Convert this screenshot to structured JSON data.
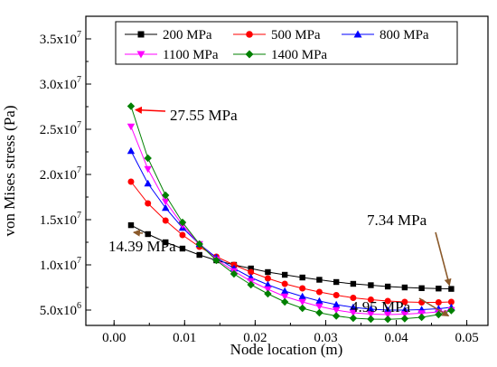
{
  "chart_data": {
    "type": "line",
    "title": "",
    "xlabel": "Node location (m)",
    "ylabel": "von Mises stress (Pa)",
    "xlim": [
      -0.004,
      0.053
    ],
    "ylim": [
      3300000,
      37500000
    ],
    "grid": false,
    "legend_placement": "top",
    "x_ticks": [
      {
        "value": 0.0,
        "label": "0.00"
      },
      {
        "value": 0.01,
        "label": "0.01"
      },
      {
        "value": 0.02,
        "label": "0.02"
      },
      {
        "value": 0.03,
        "label": "0.03"
      },
      {
        "value": 0.04,
        "label": "0.04"
      },
      {
        "value": 0.05,
        "label": "0.05"
      }
    ],
    "y_ticks": [
      {
        "value": 5000000,
        "mant": "5.0x10",
        "exp": "6"
      },
      {
        "value": 10000000,
        "mant": "1.0x10",
        "exp": "7"
      },
      {
        "value": 15000000,
        "mant": "1.5x10",
        "exp": "7"
      },
      {
        "value": 20000000,
        "mant": "2.0x10",
        "exp": "7"
      },
      {
        "value": 25000000,
        "mant": "2.5x10",
        "exp": "7"
      },
      {
        "value": 30000000,
        "mant": "3.0x10",
        "exp": "7"
      },
      {
        "value": 35000000,
        "mant": "3.5x10",
        "exp": "7"
      }
    ],
    "x": [
      0.0024,
      0.0048,
      0.0073,
      0.0097,
      0.0121,
      0.0145,
      0.017,
      0.0194,
      0.0218,
      0.0242,
      0.0267,
      0.0291,
      0.0315,
      0.0339,
      0.0364,
      0.0388,
      0.0412,
      0.0436,
      0.046,
      0.0478
    ],
    "series": [
      {
        "name": "200 MPa",
        "color": "#000000",
        "marker": "square",
        "values": [
          14390000,
          13400000,
          12500000,
          11800000,
          11100000,
          10500000,
          10000000,
          9600000,
          9200000,
          8900000,
          8600000,
          8350000,
          8100000,
          7900000,
          7750000,
          7600000,
          7500000,
          7420000,
          7380000,
          7340000
        ]
      },
      {
        "name": "500 MPa",
        "color": "#ff0000",
        "marker": "circle",
        "values": [
          19200000,
          16800000,
          14900000,
          13300000,
          12000000,
          10900000,
          10000000,
          9200000,
          8500000,
          7900000,
          7400000,
          7000000,
          6650000,
          6350000,
          6150000,
          6000000,
          5900000,
          5850000,
          5850000,
          5900000
        ]
      },
      {
        "name": "800 MPa",
        "color": "#0000ff",
        "marker": "triangle-up",
        "values": [
          22600000,
          19000000,
          16300000,
          14100000,
          12300000,
          10800000,
          9600000,
          8600000,
          7800000,
          7100000,
          6500000,
          6000000,
          5600000,
          5300000,
          5100000,
          5000000,
          5000000,
          5050000,
          5150000,
          5300000
        ]
      },
      {
        "name": "1100 MPa",
        "color": "#ff00ff",
        "marker": "triangle-down",
        "values": [
          25300000,
          20600000,
          17000000,
          14400000,
          12300000,
          10600000,
          9300000,
          8200000,
          7300000,
          6500000,
          5900000,
          5400000,
          5000000,
          4700000,
          4550000,
          4500000,
          4550000,
          4650000,
          4800000,
          5000000
        ]
      },
      {
        "name": "1400 MPa",
        "color": "#008000",
        "marker": "diamond",
        "values": [
          27550000,
          21800000,
          17700000,
          14700000,
          12300000,
          10500000,
          9000000,
          7800000,
          6800000,
          5900000,
          5200000,
          4700000,
          4350000,
          4100000,
          4000000,
          3980000,
          4050000,
          4200000,
          4500000,
          4950000
        ]
      }
    ],
    "annotations": [
      {
        "text": "27.55 MPa",
        "color": "#ff0000",
        "arrow_color": "#ff0000",
        "target_series": 4,
        "target_index": 0
      },
      {
        "text": "14.39 MPa",
        "color": "#000000",
        "arrow_color": "#8b5a2b",
        "target_series": 0,
        "target_index": 0
      },
      {
        "text": "7.34 MPa",
        "color": "#000000",
        "arrow_color": "#8b5a2b",
        "target_series": 0,
        "target_index": 19
      },
      {
        "text": "4.95 MPa",
        "color": "#000000",
        "arrow_color": "#8b5a2b",
        "target_series": 4,
        "target_index": 19
      }
    ]
  }
}
